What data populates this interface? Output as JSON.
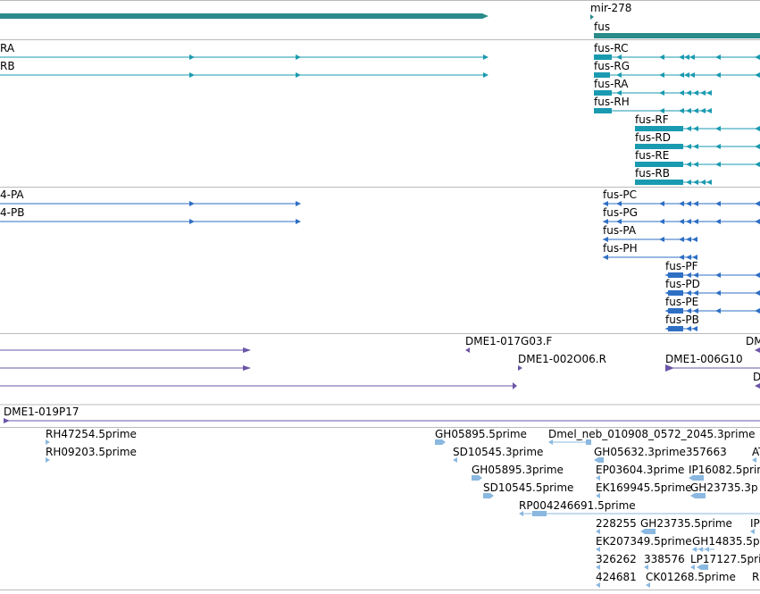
{
  "colors": {
    "gene": "#2b8a8a",
    "transcript": "#1a9ab0",
    "cds": "#2e6fc4",
    "clone": "#6b55a8",
    "est": "#8ab8e0",
    "divider": "#bbbbbb"
  },
  "tracks": {
    "gene": {
      "labels": [
        "mir-278",
        "fus"
      ]
    },
    "transcripts": {
      "left_labels": [
        "RA",
        "RB"
      ],
      "right_labels": [
        "fus-RC",
        "fus-RG",
        "fus-RA",
        "fus-RH",
        "fus-RF",
        "fus-RD",
        "fus-RE",
        "fus-RB"
      ]
    },
    "proteins": {
      "left_labels": [
        "4-PA",
        "4-PB"
      ],
      "right_labels": [
        "fus-PC",
        "fus-PG",
        "fus-PA",
        "fus-PH",
        "fus-PF",
        "fus-PD",
        "fus-PE",
        "fus-PB"
      ]
    },
    "clones": {
      "labels": [
        "DME1-017G03.F",
        "DME1-002O06.R",
        "DME1-006G10",
        "DM",
        "D",
        "DME1-019P17"
      ]
    },
    "ests": {
      "labels": [
        "RH47254.5prime",
        "RH09203.5prime",
        "GH05895.5prime",
        "Dmel_neb_010908_0572_2045.3prime",
        "SD10545.3prime",
        "GH05632.3prime357663",
        "AT",
        "GH05895.3prime",
        "EP03604.3prime",
        "IP16082.5prim",
        "SD10545.5prime",
        "EK169945.5prime",
        "GH23735.3p",
        "RP004246691.5prime",
        "228255",
        "GH23735.5prime",
        "IP",
        "EK207349.5prime",
        "GH14835.5p",
        "326262",
        "338576",
        "LP17127.5prim",
        "424681",
        "CK01268.5prime",
        "R"
      ]
    }
  }
}
